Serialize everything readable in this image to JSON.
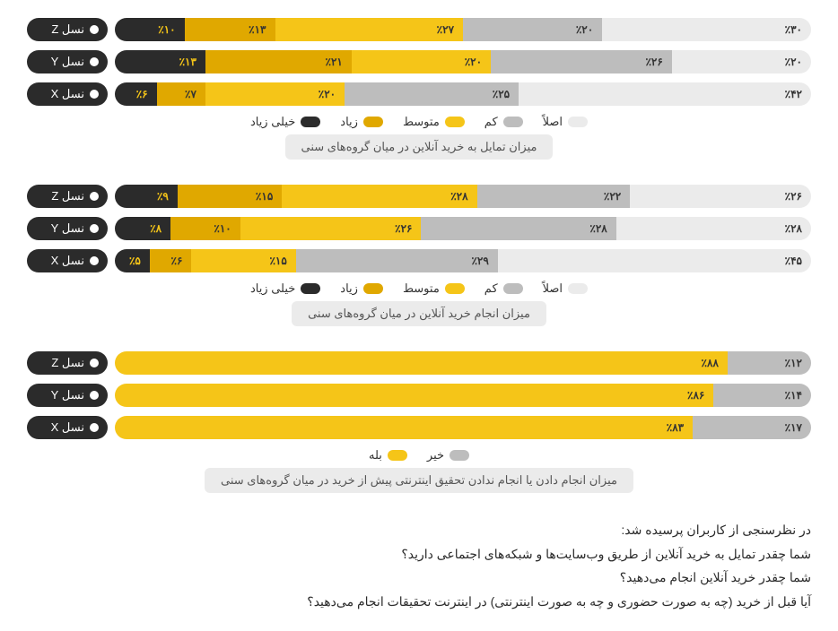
{
  "colors": {
    "s1": "#ebebeb",
    "s2": "#bdbdbd",
    "s3": "#f5c518",
    "s4": "#e0a800",
    "s5": "#2b2b2b",
    "label_bg": "#2b2b2b",
    "label_text": "#ffffff",
    "seg_text_dark": "#333333",
    "seg_text_on_dark": "#f5c518",
    "caption_bg": "#ebebeb",
    "background": "#ffffff"
  },
  "legend5": [
    {
      "label": "اصلاً",
      "colorKey": "s1"
    },
    {
      "label": "کم",
      "colorKey": "s2"
    },
    {
      "label": "متوسط",
      "colorKey": "s3"
    },
    {
      "label": "زیاد",
      "colorKey": "s4"
    },
    {
      "label": "خیلی زیاد",
      "colorKey": "s5"
    }
  ],
  "legend2": [
    {
      "label": "خیر",
      "colorKey": "s2"
    },
    {
      "label": "بله",
      "colorKey": "s3"
    }
  ],
  "charts": [
    {
      "caption": "میزان تمایل به خرید آنلاین در میان گروه‌های سنی",
      "legend": "legend5",
      "rows": [
        {
          "label": "نسل Z",
          "segs": [
            {
              "v": 30,
              "t": "٪۳۰",
              "c": "s1"
            },
            {
              "v": 20,
              "t": "٪۲۰",
              "c": "s2"
            },
            {
              "v": 27,
              "t": "٪۲۷",
              "c": "s3"
            },
            {
              "v": 13,
              "t": "٪۱۳",
              "c": "s4"
            },
            {
              "v": 10,
              "t": "٪۱۰",
              "c": "s5",
              "dark": true
            }
          ]
        },
        {
          "label": "نسل Y",
          "segs": [
            {
              "v": 20,
              "t": "٪۲۰",
              "c": "s1"
            },
            {
              "v": 26,
              "t": "٪۲۶",
              "c": "s2"
            },
            {
              "v": 20,
              "t": "٪۲۰",
              "c": "s3"
            },
            {
              "v": 21,
              "t": "٪۲۱",
              "c": "s4"
            },
            {
              "v": 13,
              "t": "٪۱۳",
              "c": "s5",
              "dark": true
            }
          ]
        },
        {
          "label": "نسل X",
          "segs": [
            {
              "v": 42,
              "t": "٪۴۲",
              "c": "s1"
            },
            {
              "v": 25,
              "t": "٪۲۵",
              "c": "s2"
            },
            {
              "v": 20,
              "t": "٪۲۰",
              "c": "s3"
            },
            {
              "v": 7,
              "t": "٪۷",
              "c": "s4"
            },
            {
              "v": 6,
              "t": "٪۶",
              "c": "s5",
              "dark": true
            }
          ]
        }
      ]
    },
    {
      "caption": "میزان انجام خرید آنلاین در میان گروه‌های سنی",
      "legend": "legend5",
      "rows": [
        {
          "label": "نسل Z",
          "segs": [
            {
              "v": 26,
              "t": "٪۲۶",
              "c": "s1"
            },
            {
              "v": 22,
              "t": "٪۲۲",
              "c": "s2"
            },
            {
              "v": 28,
              "t": "٪۲۸",
              "c": "s3"
            },
            {
              "v": 15,
              "t": "٪۱۵",
              "c": "s4"
            },
            {
              "v": 9,
              "t": "٪۹",
              "c": "s5",
              "dark": true
            }
          ]
        },
        {
          "label": "نسل Y",
          "segs": [
            {
              "v": 28,
              "t": "٪۲۸",
              "c": "s1"
            },
            {
              "v": 28,
              "t": "٪۲۸",
              "c": "s2"
            },
            {
              "v": 26,
              "t": "٪۲۶",
              "c": "s3"
            },
            {
              "v": 10,
              "t": "٪۱۰",
              "c": "s4"
            },
            {
              "v": 8,
              "t": "٪۸",
              "c": "s5",
              "dark": true
            }
          ]
        },
        {
          "label": "نسل X",
          "segs": [
            {
              "v": 45,
              "t": "٪۴۵",
              "c": "s1"
            },
            {
              "v": 29,
              "t": "٪۲۹",
              "c": "s2"
            },
            {
              "v": 15,
              "t": "٪۱۵",
              "c": "s3"
            },
            {
              "v": 6,
              "t": "٪۶",
              "c": "s4"
            },
            {
              "v": 5,
              "t": "٪۵",
              "c": "s5",
              "dark": true
            }
          ]
        }
      ]
    },
    {
      "caption": "میزان انجام دادن یا انجام ندادن تحقیق اینترنتی پیش از خرید در میان گروه‌های سنی",
      "legend": "legend2",
      "rows": [
        {
          "label": "نسل Z",
          "segs": [
            {
              "v": 12,
              "t": "٪۱۲",
              "c": "s2"
            },
            {
              "v": 88,
              "t": "٪۸۸",
              "c": "s3"
            }
          ]
        },
        {
          "label": "نسل Y",
          "segs": [
            {
              "v": 14,
              "t": "٪۱۴",
              "c": "s2"
            },
            {
              "v": 86,
              "t": "٪۸۶",
              "c": "s3"
            }
          ]
        },
        {
          "label": "نسل X",
          "segs": [
            {
              "v": 17,
              "t": "٪۱۷",
              "c": "s2"
            },
            {
              "v": 83,
              "t": "٪۸۳",
              "c": "s3"
            }
          ]
        }
      ]
    }
  ],
  "footer": {
    "lead": "در نظرسنجی از کاربران پرسیده شد:",
    "q1": "شما چقدر تمایل به خرید آنلاین از طریق وب‌سایت‌ها و شبکه‌های اجتماعی دارید؟",
    "q2": "شما چقدر خرید آنلاین انجام می‌دهید؟",
    "q3": "آیا قبل از خرید (چه به صورت حضوری و چه به صورت اینترنتی) در اینترنت تحقیقات انجام می‌دهید؟"
  }
}
